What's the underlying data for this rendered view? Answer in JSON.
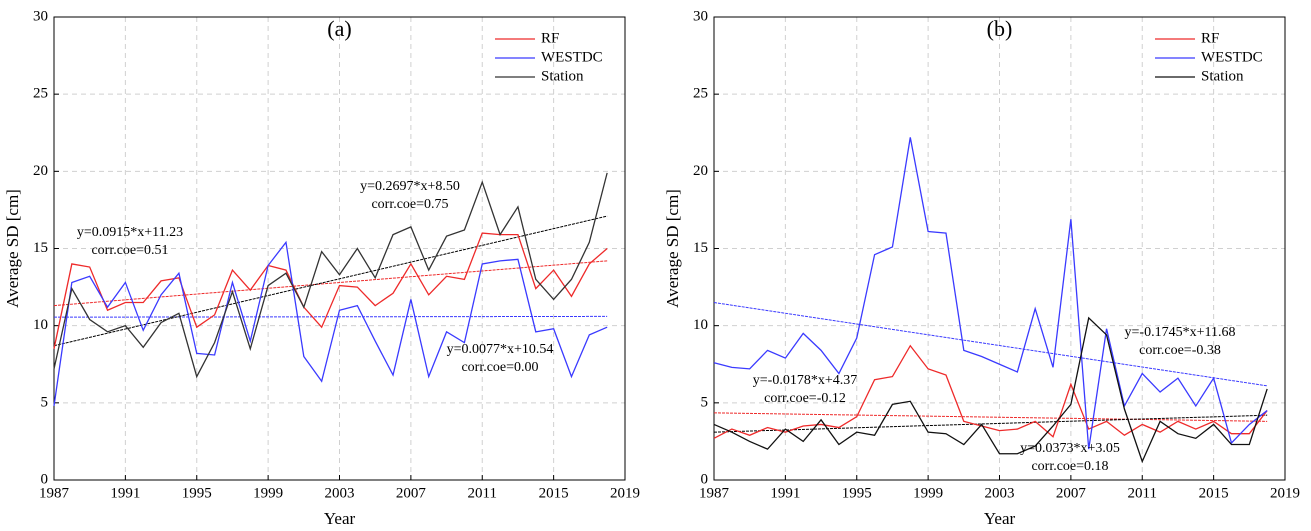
{
  "chart_data": [
    {
      "type": "line",
      "title": "(a)",
      "x_label": "Year",
      "y_label": "Average SD [cm]",
      "x": [
        1987,
        1988,
        1989,
        1990,
        1991,
        1992,
        1993,
        1994,
        1995,
        1996,
        1997,
        1998,
        1999,
        2000,
        2001,
        2002,
        2003,
        2004,
        2005,
        2006,
        2007,
        2008,
        2009,
        2010,
        2011,
        2012,
        2013,
        2014,
        2015,
        2016,
        2017,
        2018
      ],
      "xlim": [
        1987,
        2019
      ],
      "xticks": [
        1987,
        1991,
        1995,
        1999,
        2003,
        2007,
        2011,
        2015,
        2019
      ],
      "ylim": [
        0,
        30
      ],
      "yticks": [
        0,
        5,
        10,
        15,
        20,
        25,
        30
      ],
      "grid": true,
      "legend": "upper right",
      "series": [
        {
          "name": "RF",
          "color": "#ee2a2a",
          "values": [
            8.5,
            14,
            13.8,
            11,
            11.5,
            11.5,
            12.9,
            13.1,
            9.9,
            10.7,
            13.6,
            12.3,
            13.9,
            13.6,
            11.2,
            9.9,
            12.6,
            12.5,
            11.3,
            12.1,
            14,
            12,
            13.2,
            13,
            16,
            15.9,
            15.9,
            12.4,
            13.6,
            11.9,
            14,
            15
          ]
        },
        {
          "name": "WESTDC",
          "color": "#3a3aff",
          "values": [
            4.8,
            12.8,
            13.2,
            11.2,
            12.8,
            9.7,
            12,
            13.4,
            8.2,
            8.1,
            12.8,
            9,
            13.9,
            15.4,
            8,
            6.4,
            11,
            11.3,
            9,
            6.8,
            11.7,
            6.7,
            9.6,
            8.9,
            14,
            14.2,
            14.3,
            9.6,
            9.8,
            6.7,
            9.4,
            9.9
          ]
        },
        {
          "name": "Station",
          "color": "#333333",
          "values": [
            7.2,
            12.4,
            10.4,
            9.6,
            10,
            8.6,
            10.2,
            10.8,
            6.7,
            8.9,
            12.2,
            8.5,
            12.6,
            13.4,
            11.2,
            14.8,
            13.3,
            15,
            13.1,
            15.9,
            16.4,
            13.6,
            15.8,
            16.2,
            19.3,
            15.9,
            17.7,
            13,
            11.7,
            13,
            15.4,
            19.9
          ]
        }
      ],
      "trend_lines": [
        {
          "color": "#ee2a2a",
          "x": [
            1987,
            2018
          ],
          "values": [
            11.3,
            14.2
          ]
        },
        {
          "color": "#3a3aff",
          "x": [
            1987,
            2018
          ],
          "values": [
            10.55,
            10.6
          ]
        },
        {
          "color": "#000000",
          "x": [
            1987,
            2018
          ],
          "values": [
            8.7,
            17.1
          ]
        }
      ],
      "annotations": [
        {
          "color": "#ee2a2a",
          "lines": [
            "y=0.0915*x+11.23",
            "corr.coe=0.51"
          ]
        },
        {
          "color": "#000000",
          "lines": [
            "y=0.2697*x+8.50",
            "corr.coe=0.75"
          ]
        },
        {
          "color": "#3a3aff",
          "lines": [
            "y=0.0077*x+10.54",
            "corr.coe=0.00"
          ]
        }
      ]
    },
    {
      "type": "line",
      "title": "(b)",
      "x_label": "Year",
      "y_label": "Average SD [cm]",
      "x": [
        1987,
        1988,
        1989,
        1990,
        1991,
        1992,
        1993,
        1994,
        1995,
        1996,
        1997,
        1998,
        1999,
        2000,
        2001,
        2002,
        2003,
        2004,
        2005,
        2006,
        2007,
        2008,
        2009,
        2010,
        2011,
        2012,
        2013,
        2014,
        2015,
        2016,
        2017,
        2018
      ],
      "xlim": [
        1987,
        2019
      ],
      "xticks": [
        1987,
        1991,
        1995,
        1999,
        2003,
        2007,
        2011,
        2015,
        2019
      ],
      "ylim": [
        0,
        30
      ],
      "yticks": [
        0,
        5,
        10,
        15,
        20,
        25,
        30
      ],
      "grid": true,
      "legend": "upper right",
      "series": [
        {
          "name": "RF",
          "color": "#ee2a2a",
          "values": [
            2.7,
            3.3,
            2.9,
            3.4,
            3.1,
            3.5,
            3.6,
            3.4,
            4.1,
            6.5,
            6.7,
            8.7,
            7.2,
            6.8,
            3.8,
            3.5,
            3.2,
            3.3,
            3.8,
            2.8,
            6.2,
            3.3,
            3.8,
            2.9,
            3.6,
            3.1,
            3.8,
            3.3,
            3.8,
            3,
            3,
            4.5
          ]
        },
        {
          "name": "WESTDC",
          "color": "#3a3aff",
          "values": [
            7.6,
            7.3,
            7.2,
            8.4,
            7.9,
            9.5,
            8.4,
            6.9,
            9.2,
            14.6,
            15.1,
            22.2,
            16.1,
            16,
            8.4,
            8,
            7.5,
            7,
            11.1,
            7.3,
            16.9,
            2,
            9.8,
            4.8,
            6.9,
            5.7,
            6.6,
            4.8,
            6.6,
            2.4,
            3.6,
            4.5
          ]
        },
        {
          "name": "Station",
          "color": "#111111",
          "values": [
            3.6,
            3.1,
            2.5,
            2,
            3.3,
            2.5,
            3.9,
            2.3,
            3.1,
            2.9,
            4.9,
            5.1,
            3.1,
            3,
            2.3,
            3.6,
            1.7,
            1.7,
            2.2,
            3.5,
            4.9,
            10.5,
            9.4,
            4.6,
            1.2,
            3.8,
            3,
            2.7,
            3.6,
            2.3,
            2.3,
            5.9
          ]
        }
      ],
      "trend_lines": [
        {
          "color": "#ee2a2a",
          "x": [
            1987,
            2018
          ],
          "values": [
            4.35,
            3.8
          ]
        },
        {
          "color": "#3a3aff",
          "x": [
            1987,
            2018
          ],
          "values": [
            11.5,
            6.1
          ]
        },
        {
          "color": "#000000",
          "x": [
            1987,
            2018
          ],
          "values": [
            3.1,
            4.2
          ]
        }
      ],
      "annotations": [
        {
          "color": "#ee2a2a",
          "lines": [
            "y=-0.0178*x+4.37",
            "corr.coe=-0.12"
          ]
        },
        {
          "color": "#3a3aff",
          "lines": [
            "y=-0.1745*x+11.68",
            "corr.coe=-0.38"
          ]
        },
        {
          "color": "#000000",
          "lines": [
            "y=0.0373*x+3.05",
            "corr.coe=0.18"
          ]
        }
      ]
    }
  ]
}
